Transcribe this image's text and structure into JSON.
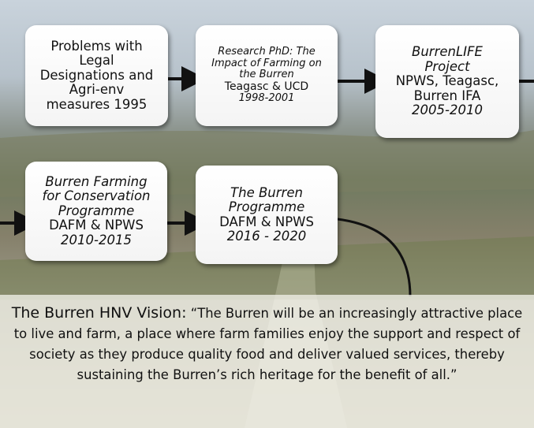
{
  "nodes": [
    {
      "lines": [
        {
          "text": "Problems with",
          "italic": false
        },
        {
          "text": "Legal",
          "italic": false
        },
        {
          "text": "Designations and",
          "italic": false
        },
        {
          "text": "Agri-env",
          "italic": false
        },
        {
          "text": "measures 1995",
          "italic": false
        }
      ]
    },
    {
      "lines": [
        {
          "text": "Research PhD: The",
          "italic": true
        },
        {
          "text": "Impact of Farming on",
          "italic": true
        },
        {
          "text": "the Burren",
          "italic": true
        },
        {
          "text": "Teagasc & UCD",
          "italic": false
        },
        {
          "text": "1998-2001",
          "italic": true
        }
      ]
    },
    {
      "lines": [
        {
          "text": "BurrenLIFE",
          "italic": true
        },
        {
          "text": "Project",
          "italic": true
        },
        {
          "text": "NPWS, Teagasc,",
          "italic": false
        },
        {
          "text": "Burren IFA",
          "italic": false
        },
        {
          "text": "2005-2010",
          "italic": true
        }
      ]
    },
    {
      "lines": [
        {
          "text": "Burren Farming",
          "italic": true
        },
        {
          "text": "for Conservation",
          "italic": true
        },
        {
          "text": "Programme",
          "italic": true
        },
        {
          "text": "DAFM & NPWS",
          "italic": false
        },
        {
          "text": "2010-2015",
          "italic": true
        }
      ]
    },
    {
      "lines": [
        {
          "text": "The Burren",
          "italic": true
        },
        {
          "text": "Programme",
          "italic": true
        },
        {
          "text": "DAFM & NPWS",
          "italic": false
        },
        {
          "text": "2016 - 2020",
          "italic": true
        }
      ]
    }
  ],
  "vision": {
    "label": "The Burren HNV Vision:",
    "text": "“The Burren will be an increasingly attractive place to live and farm, a place where farm families enjoy the support and respect of society as they produce quality food and deliver valued services, thereby sustaining the Burren’s rich heritage for the benefit of all.”"
  }
}
